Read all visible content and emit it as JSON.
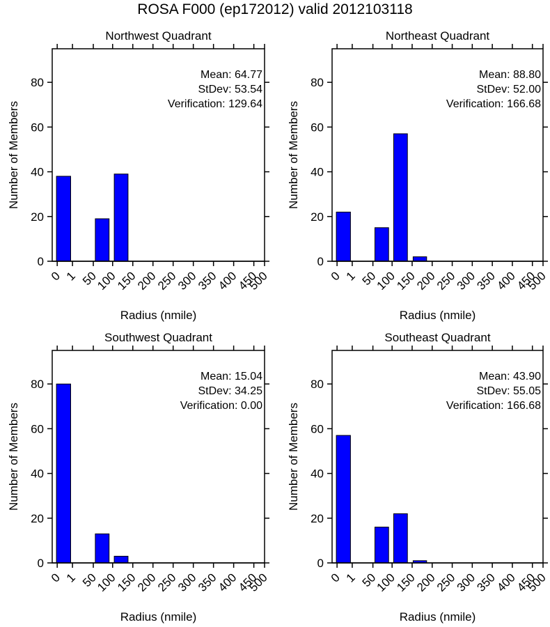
{
  "page": {
    "title": "ROSA F000 (ep172012) valid 2012103118"
  },
  "style": {
    "bar_color": "#0000ff",
    "bar_edge_color": "#000000",
    "axis_color": "#000000",
    "background": "#ffffff"
  },
  "chart_data": [
    {
      "type": "bar",
      "title": "Northwest Quadrant",
      "xlabel": "Radius (nmile)",
      "ylabel": "Number of Members",
      "x_ticks": [
        "0",
        "1",
        "50",
        "100",
        "150",
        "200",
        "250",
        "300",
        "350",
        "400",
        "450",
        "500"
      ],
      "y_ticks": [
        "0",
        "20",
        "40",
        "60",
        "80"
      ],
      "ylim": [
        0,
        95
      ],
      "bins": [
        "0",
        "1-50",
        "50-100",
        "100-150",
        "150-200",
        "200-250",
        "250-300",
        "300-350",
        "350-400",
        "400-450",
        "450-500"
      ],
      "values": [
        38,
        0,
        19,
        39,
        0,
        0,
        0,
        0,
        0,
        0,
        0
      ],
      "stats": [
        "Mean: 64.77",
        "StDev: 53.54",
        "Verification: 129.64"
      ],
      "grid": false
    },
    {
      "type": "bar",
      "title": "Northeast Quadrant",
      "xlabel": "Radius (nmile)",
      "ylabel": "Number of Members",
      "x_ticks": [
        "0",
        "1",
        "50",
        "100",
        "150",
        "200",
        "250",
        "300",
        "350",
        "400",
        "450",
        "500"
      ],
      "y_ticks": [
        "0",
        "20",
        "40",
        "60",
        "80"
      ],
      "ylim": [
        0,
        95
      ],
      "bins": [
        "0",
        "1-50",
        "50-100",
        "100-150",
        "150-200",
        "200-250",
        "250-300",
        "300-350",
        "350-400",
        "400-450",
        "450-500"
      ],
      "values": [
        22,
        0,
        15,
        57,
        2,
        0,
        0,
        0,
        0,
        0,
        0
      ],
      "stats": [
        "Mean: 88.80",
        "StDev: 52.00",
        "Verification: 166.68"
      ],
      "grid": false
    },
    {
      "type": "bar",
      "title": "Southwest Quadrant",
      "xlabel": "Radius (nmile)",
      "ylabel": "Number of Members",
      "x_ticks": [
        "0",
        "1",
        "50",
        "100",
        "150",
        "200",
        "250",
        "300",
        "350",
        "400",
        "450",
        "500"
      ],
      "y_ticks": [
        "0",
        "20",
        "40",
        "60",
        "80"
      ],
      "ylim": [
        0,
        95
      ],
      "bins": [
        "0",
        "1-50",
        "50-100",
        "100-150",
        "150-200",
        "200-250",
        "250-300",
        "300-350",
        "350-400",
        "400-450",
        "450-500"
      ],
      "values": [
        80,
        0,
        13,
        3,
        0,
        0,
        0,
        0,
        0,
        0,
        0
      ],
      "stats": [
        "Mean: 15.04",
        "StDev: 34.25",
        "Verification: 0.00"
      ],
      "grid": false
    },
    {
      "type": "bar",
      "title": "Southeast Quadrant",
      "xlabel": "Radius (nmile)",
      "ylabel": "Number of Members",
      "x_ticks": [
        "0",
        "1",
        "50",
        "100",
        "150",
        "200",
        "250",
        "300",
        "350",
        "400",
        "450",
        "500"
      ],
      "y_ticks": [
        "0",
        "20",
        "40",
        "60",
        "80"
      ],
      "ylim": [
        0,
        95
      ],
      "bins": [
        "0",
        "1-50",
        "50-100",
        "100-150",
        "150-200",
        "200-250",
        "250-300",
        "300-350",
        "350-400",
        "400-450",
        "450-500"
      ],
      "values": [
        57,
        0,
        16,
        22,
        1,
        0,
        0,
        0,
        0,
        0,
        0
      ],
      "stats": [
        "Mean: 43.90",
        "StDev: 55.05",
        "Verification: 166.68"
      ],
      "grid": false
    }
  ]
}
